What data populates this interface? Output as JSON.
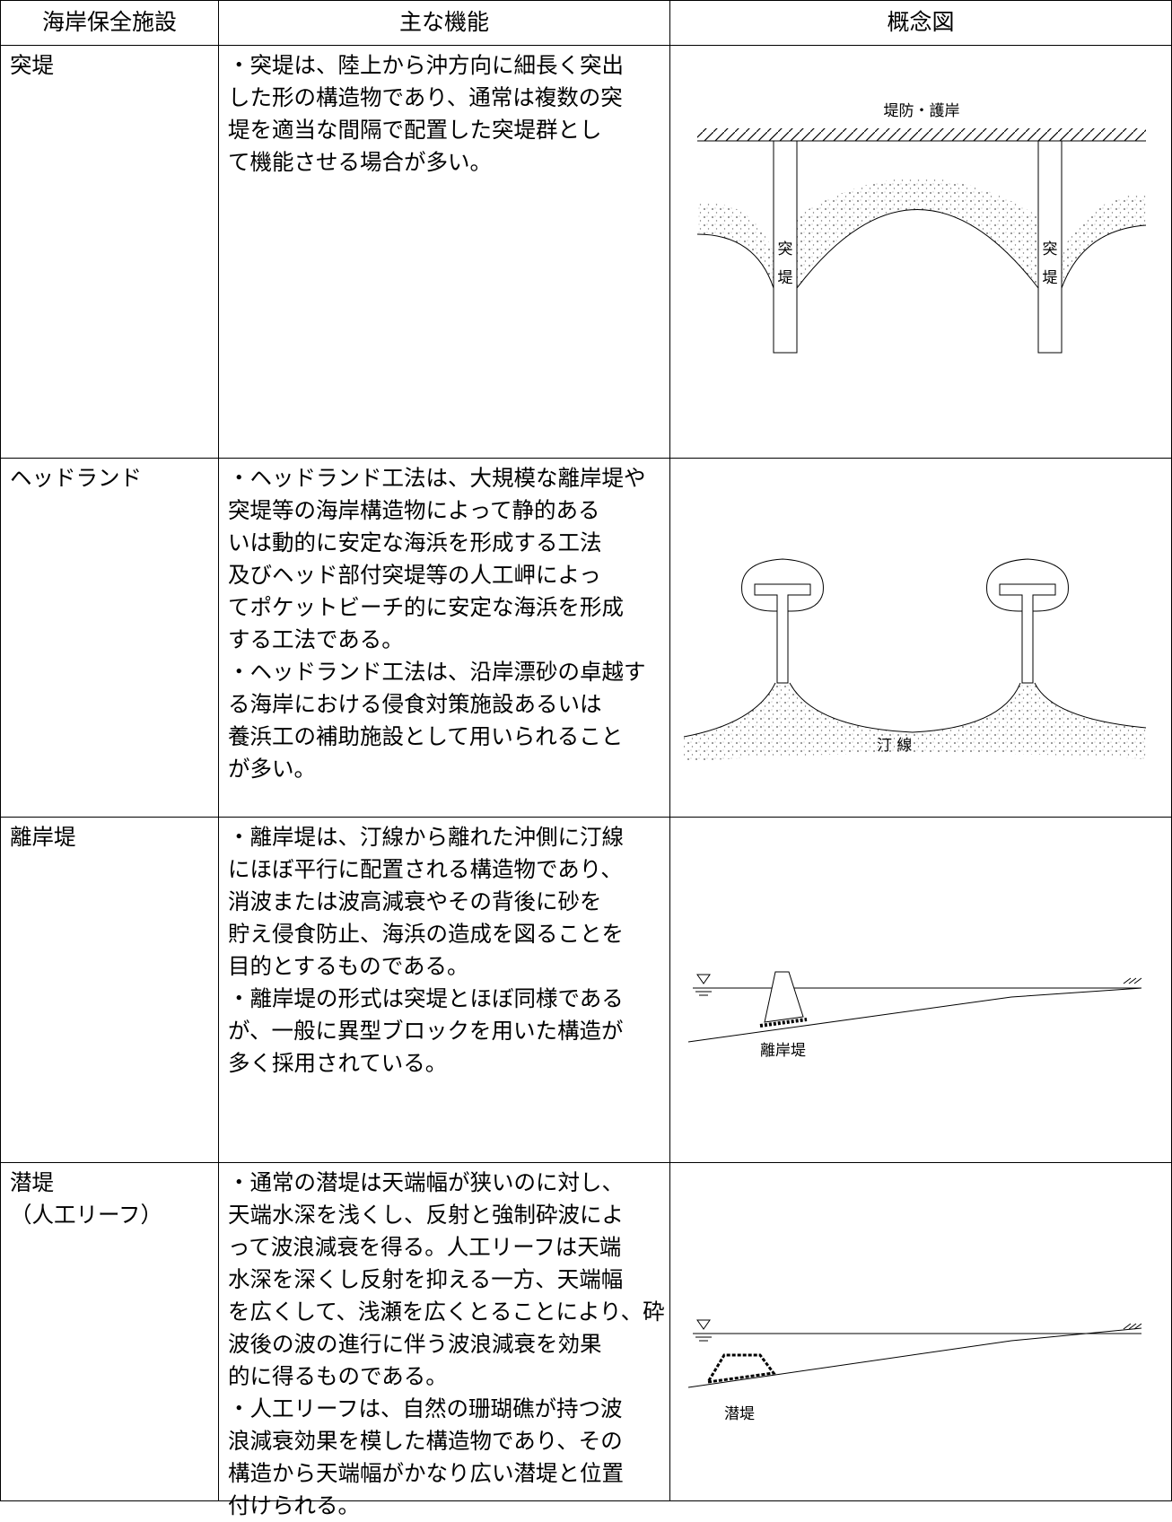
{
  "table": {
    "headers": [
      "海岸保全施設",
      "主な機能",
      "概念図"
    ],
    "rows": [
      {
        "facility": [
          "突堤"
        ],
        "function": [
          "・突堤は、陸上から沖方向に細長く突出",
          "した形の構造物であり、通常は複数の突",
          "堤を適当な間隔で配置した突堤群とし",
          "て機能させる場合が多い。"
        ],
        "diagram_labels": [
          "堤防・護岸",
          "突",
          "堤",
          "突",
          "堤"
        ]
      },
      {
        "facility": [
          "ヘッドランド"
        ],
        "function": [
          "・ヘッドランド工法は、大規模な離岸堤や",
          "突堤等の海岸構造物によって静的ある",
          "いは動的に安定な海浜を形成する工法",
          "及びヘッド部付突堤等の人工岬によっ",
          "てポケットビーチ的に安定な海浜を形成",
          "する工法である。",
          "・ヘッドランド工法は、沿岸漂砂の卓越す",
          "る海岸における侵食対策施設あるいは",
          "養浜工の補助施設として用いられること",
          "が多い。"
        ],
        "diagram_labels": [
          "汀 線"
        ]
      },
      {
        "facility": [
          "離岸堤"
        ],
        "function": [
          "・離岸堤は、汀線から離れた沖側に汀線",
          "にほぼ平行に配置される構造物であり、",
          "消波または波高減衰やその背後に砂を",
          "貯え侵食防止、海浜の造成を図ることを",
          "目的とするものである。",
          "・離岸堤の形式は突堤とほぼ同様である",
          "が、一般に異型ブロックを用いた構造が",
          "多く採用されている。"
        ],
        "diagram_labels": [
          "離岸堤"
        ]
      },
      {
        "facility": [
          "潜堤",
          "（人工リーフ）"
        ],
        "function": [
          "・通常の潜堤は天端幅が狭いのに対し、",
          "天端水深を浅くし、反射と強制砕波によ",
          "って波浪減衰を得る。人工リーフは天端",
          "水深を深くし反射を抑える一方、天端幅",
          "を広くして、浅瀬を広くとることにより、砕",
          "波後の波の進行に伴う波浪減衰を効果",
          "的に得るものである。",
          "・人工リーフは、自然の珊瑚礁が持つ波",
          "浪減衰効果を模した構造物であり、その",
          "構造から天端幅がかなり広い潜堤と位置",
          "付けられる。"
        ],
        "diagram_labels": [
          "潜堤"
        ]
      }
    ]
  }
}
